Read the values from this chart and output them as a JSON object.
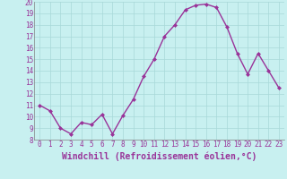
{
  "x": [
    0,
    1,
    2,
    3,
    4,
    5,
    6,
    7,
    8,
    9,
    10,
    11,
    12,
    13,
    14,
    15,
    16,
    17,
    18,
    19,
    20,
    21,
    22,
    23
  ],
  "y": [
    11.0,
    10.5,
    9.0,
    8.5,
    9.5,
    9.3,
    10.2,
    8.5,
    10.1,
    11.5,
    13.5,
    15.0,
    17.0,
    18.0,
    19.3,
    19.7,
    19.8,
    19.5,
    17.8,
    15.5,
    13.7,
    15.5,
    14.0,
    12.5
  ],
  "line_color": "#993399",
  "marker": "D",
  "marker_size": 2,
  "line_width": 1.0,
  "xlabel": "Windchill (Refroidissement éolien,°C)",
  "xlabel_fontsize": 7,
  "background_color": "#c8f0f0",
  "plot_bg_color": "#c8f0f0",
  "grid_color": "#a8d8d8",
  "xlim": [
    -0.5,
    23.5
  ],
  "ylim": [
    8,
    20
  ],
  "yticks": [
    8,
    9,
    10,
    11,
    12,
    13,
    14,
    15,
    16,
    17,
    18,
    19,
    20
  ],
  "xtick_labels": [
    "0",
    "1",
    "2",
    "3",
    "4",
    "5",
    "6",
    "7",
    "8",
    "9",
    "10",
    "11",
    "12",
    "13",
    "14",
    "15",
    "16",
    "17",
    "18",
    "19",
    "20",
    "21",
    "22",
    "23"
  ],
  "tick_fontsize": 5.5
}
